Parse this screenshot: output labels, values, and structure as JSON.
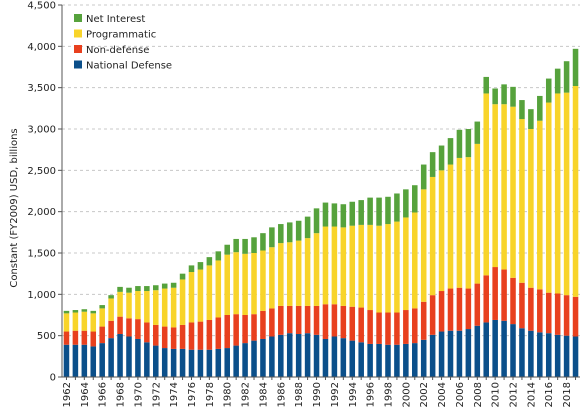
{
  "chart_data": {
    "type": "bar",
    "stacked": true,
    "ylabel": "Constant (FY2009) USD, billions",
    "xlabel": "",
    "ylim": [
      0,
      4500
    ],
    "y_ticks": [
      "0",
      "500",
      "1,000",
      "1,500",
      "2,000",
      "2,500",
      "3,000",
      "3,500",
      "4,000",
      "4,500"
    ],
    "y_tick_values": [
      0,
      500,
      1000,
      1500,
      2000,
      2500,
      3000,
      3500,
      4000,
      4500
    ],
    "grid": true,
    "legend_position": "top-left",
    "x_tick_labels": [
      "1962",
      "1964",
      "1966",
      "1968",
      "1970",
      "1972",
      "1974",
      "1976",
      "1978",
      "1980",
      "1982",
      "1984",
      "1986",
      "1988",
      "1990",
      "1992",
      "1994",
      "1996",
      "1998",
      "2000",
      "2002",
      "2004",
      "2006",
      "2008",
      "2010",
      "2012",
      "2014",
      "2016",
      "2018"
    ],
    "categories": [
      "1962",
      "1963",
      "1964",
      "1965",
      "1966",
      "1967",
      "1968",
      "1969",
      "1970",
      "1971",
      "1972",
      "1973",
      "1974",
      "1975",
      "1976",
      "1977",
      "1978",
      "1979",
      "1980",
      "1981",
      "1982",
      "1983",
      "1984",
      "1985",
      "1986",
      "1987",
      "1988",
      "1989",
      "1990",
      "1991",
      "1992",
      "1993",
      "1994",
      "1995",
      "1996",
      "1997",
      "1998",
      "1999",
      "2000",
      "2001",
      "2002",
      "2003",
      "2004",
      "2005",
      "2006",
      "2007",
      "2008",
      "2009",
      "2010",
      "2011",
      "2012",
      "2013",
      "2014",
      "2015",
      "2016",
      "2017",
      "2018",
      "2019"
    ],
    "series": [
      {
        "name": "National Defense",
        "color": "#0b4f8a",
        "values": [
          390,
          390,
          390,
          370,
          410,
          470,
          520,
          490,
          460,
          420,
          380,
          350,
          340,
          340,
          330,
          330,
          330,
          340,
          350,
          380,
          410,
          440,
          460,
          490,
          510,
          530,
          520,
          530,
          510,
          460,
          490,
          470,
          440,
          420,
          400,
          400,
          390,
          390,
          400,
          410,
          450,
          510,
          550,
          560,
          560,
          580,
          620,
          660,
          690,
          680,
          640,
          590,
          560,
          540,
          530,
          510,
          500,
          490
        ]
      },
      {
        "name": "Non-defense",
        "color": "#e8401e",
        "values": [
          160,
          170,
          170,
          180,
          200,
          210,
          210,
          220,
          240,
          240,
          250,
          260,
          260,
          290,
          330,
          340,
          360,
          380,
          400,
          380,
          340,
          320,
          340,
          340,
          350,
          330,
          340,
          330,
          350,
          420,
          390,
          390,
          410,
          420,
          410,
          380,
          390,
          390,
          410,
          420,
          460,
          480,
          490,
          510,
          520,
          490,
          510,
          570,
          640,
          620,
          560,
          550,
          520,
          520,
          490,
          500,
          490,
          480
        ]
      },
      {
        "name": "Programmatic",
        "color": "#f8d42a",
        "values": [
          220,
          220,
          230,
          220,
          220,
          270,
          300,
          310,
          340,
          380,
          420,
          460,
          480,
          550,
          610,
          630,
          660,
          690,
          730,
          750,
          740,
          740,
          730,
          740,
          760,
          770,
          790,
          820,
          880,
          940,
          940,
          950,
          980,
          1000,
          1030,
          1050,
          1070,
          1100,
          1120,
          1160,
          1360,
          1430,
          1460,
          1500,
          1570,
          1590,
          1690,
          2200,
          1970,
          2000,
          2070,
          1980,
          1920,
          2040,
          2300,
          2420,
          2450,
          2550
        ]
      },
      {
        "name": "Net Interest",
        "color": "#56a23c",
        "values": [
          30,
          30,
          30,
          30,
          40,
          40,
          60,
          60,
          60,
          60,
          60,
          60,
          60,
          70,
          80,
          90,
          100,
          110,
          120,
          160,
          180,
          190,
          210,
          240,
          230,
          240,
          240,
          260,
          300,
          290,
          280,
          280,
          290,
          300,
          330,
          340,
          330,
          340,
          340,
          330,
          300,
          300,
          300,
          320,
          340,
          340,
          270,
          200,
          190,
          240,
          240,
          230,
          240,
          300,
          290,
          300,
          380,
          450
        ]
      }
    ]
  }
}
